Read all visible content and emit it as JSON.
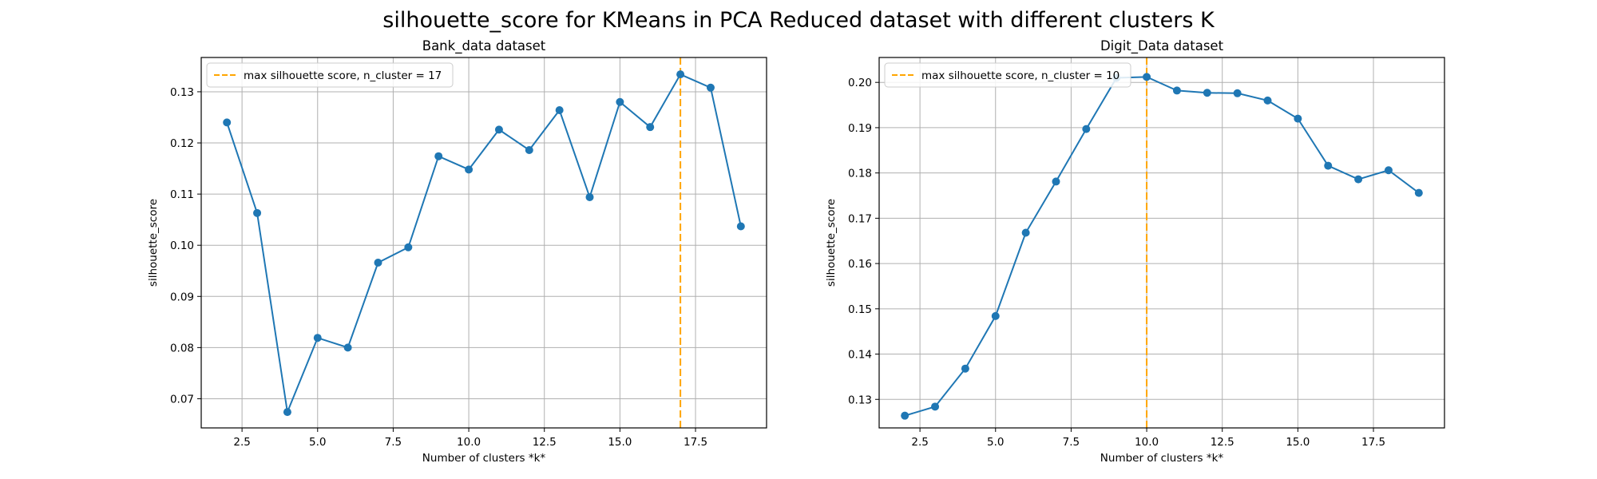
{
  "figure": {
    "title": "silhouette_score for KMeans in PCA Reduced dataset with different clusters K"
  },
  "chart_data": [
    {
      "type": "line",
      "title": "Bank_data dataset",
      "xlabel": "Number of clusters *k*",
      "ylabel": "silhouette_score",
      "x": [
        2,
        3,
        4,
        5,
        6,
        7,
        8,
        9,
        10,
        11,
        12,
        13,
        14,
        15,
        16,
        17,
        18,
        19
      ],
      "series": [
        {
          "values": [
            0.124,
            0.1063,
            0.0674,
            0.0819,
            0.08,
            0.0966,
            0.0996,
            0.1174,
            0.1148,
            0.1226,
            0.1186,
            0.1264,
            0.1094,
            0.128,
            0.1231,
            0.1334,
            0.1308,
            0.1037
          ],
          "color": "#1f77b4",
          "marker": "circle"
        }
      ],
      "xlim": [
        1.15,
        19.85
      ],
      "ylim": [
        0.0643,
        0.1367
      ],
      "xticks": [
        2.5,
        5.0,
        7.5,
        10.0,
        12.5,
        15.0,
        17.5
      ],
      "xtick_labels": [
        "2.5",
        "5.0",
        "7.5",
        "10.0",
        "12.5",
        "15.0",
        "17.5"
      ],
      "yticks": [
        0.07,
        0.08,
        0.09,
        0.1,
        0.11,
        0.12,
        0.13
      ],
      "ytick_labels": [
        "0.07",
        "0.08",
        "0.09",
        "0.10",
        "0.11",
        "0.12",
        "0.13"
      ],
      "grid": true,
      "vline": {
        "x": 17,
        "color": "#ffa500",
        "style": "dashed",
        "label": "max silhouette score, n_cluster = 17"
      },
      "legend_position": "top-left"
    },
    {
      "type": "line",
      "title": "Digit_Data dataset",
      "xlabel": "Number of clusters *k*",
      "ylabel": "silhouette_score",
      "x": [
        2,
        3,
        4,
        5,
        6,
        7,
        8,
        9,
        10,
        11,
        12,
        13,
        14,
        15,
        16,
        17,
        18,
        19
      ],
      "series": [
        {
          "values": [
            0.1264,
            0.1284,
            0.1368,
            0.1484,
            0.1668,
            0.1781,
            0.1897,
            0.201,
            0.2012,
            0.1982,
            0.1977,
            0.1976,
            0.196,
            0.192,
            0.1816,
            0.1786,
            0.1806,
            0.1756
          ],
          "color": "#1f77b4",
          "marker": "circle"
        }
      ],
      "xlim": [
        1.15,
        19.85
      ],
      "ylim": [
        0.1237,
        0.2055
      ],
      "xticks": [
        2.5,
        5.0,
        7.5,
        10.0,
        12.5,
        15.0,
        17.5
      ],
      "xtick_labels": [
        "2.5",
        "5.0",
        "7.5",
        "10.0",
        "12.5",
        "15.0",
        "17.5"
      ],
      "yticks": [
        0.13,
        0.14,
        0.15,
        0.16,
        0.17,
        0.18,
        0.19,
        0.2
      ],
      "ytick_labels": [
        "0.13",
        "0.14",
        "0.15",
        "0.16",
        "0.17",
        "0.18",
        "0.19",
        "0.20"
      ],
      "grid": true,
      "vline": {
        "x": 10,
        "color": "#ffa500",
        "style": "dashed",
        "label": "max silhouette score, n_cluster = 10"
      },
      "legend_position": "top-left"
    }
  ]
}
